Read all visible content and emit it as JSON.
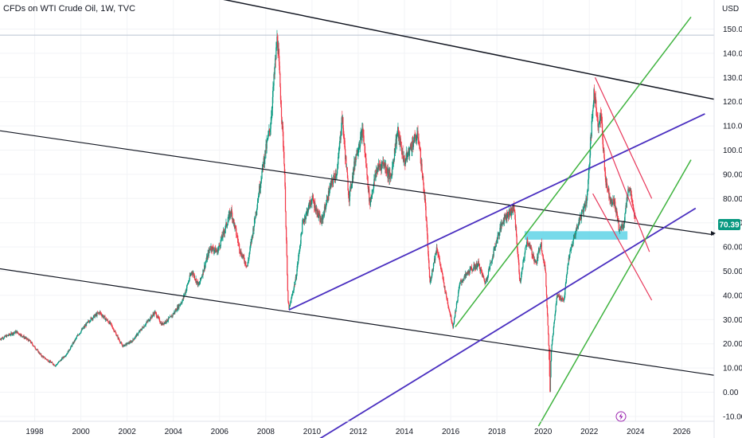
{
  "header": {
    "title": "CFDs on WTI Crude Oil, 1W, TVC",
    "currency": "USD"
  },
  "chart_data": {
    "type": "candlestick",
    "title": "CFDs on WTI Crude Oil, 1W, TVC",
    "ylabel": "USD",
    "ylim": [
      -12,
      162
    ],
    "xlim": [
      1996.5,
      2027.4
    ],
    "yticks": [
      "-10.00",
      "0.00",
      "10.00",
      "20.00",
      "30.00",
      "40.00",
      "50.00",
      "60.00",
      "70.00",
      "80.00",
      "90.00",
      "100.00",
      "110.00",
      "120.00",
      "130.00",
      "140.00",
      "150.00"
    ],
    "xticks": [
      "1998",
      "2000",
      "2002",
      "2004",
      "2006",
      "2008",
      "2010",
      "2012",
      "2014",
      "2016",
      "2018",
      "2020",
      "2022",
      "2024",
      "2026"
    ],
    "last_price": "70.39",
    "grid": true,
    "price_path": [
      [
        1996.5,
        22
      ],
      [
        1997.2,
        25
      ],
      [
        1997.8,
        21
      ],
      [
        1998.3,
        15
      ],
      [
        1998.9,
        11
      ],
      [
        1999.4,
        16
      ],
      [
        1999.9,
        24
      ],
      [
        2000.4,
        30
      ],
      [
        2000.8,
        33
      ],
      [
        2001.3,
        28
      ],
      [
        2001.8,
        19
      ],
      [
        2002.2,
        21
      ],
      [
        2002.7,
        27
      ],
      [
        2003.2,
        33
      ],
      [
        2003.5,
        28
      ],
      [
        2003.9,
        31
      ],
      [
        2004.4,
        38
      ],
      [
        2004.8,
        50
      ],
      [
        2005.1,
        44
      ],
      [
        2005.6,
        60
      ],
      [
        2005.9,
        58
      ],
      [
        2006.5,
        75
      ],
      [
        2006.9,
        58
      ],
      [
        2007.2,
        52
      ],
      [
        2007.5,
        70
      ],
      [
        2007.9,
        95
      ],
      [
        2008.2,
        110
      ],
      [
        2008.5,
        147
      ],
      [
        2008.8,
        95
      ],
      [
        2008.95,
        40
      ],
      [
        2009.0,
        34
      ],
      [
        2009.3,
        47
      ],
      [
        2009.6,
        70
      ],
      [
        2010.0,
        80
      ],
      [
        2010.4,
        70
      ],
      [
        2010.8,
        85
      ],
      [
        2011.1,
        92
      ],
      [
        2011.3,
        114
      ],
      [
        2011.6,
        80
      ],
      [
        2011.9,
        98
      ],
      [
        2012.2,
        108
      ],
      [
        2012.5,
        78
      ],
      [
        2012.8,
        92
      ],
      [
        2013.1,
        95
      ],
      [
        2013.4,
        88
      ],
      [
        2013.7,
        108
      ],
      [
        2014.0,
        95
      ],
      [
        2014.4,
        104
      ],
      [
        2014.6,
        106
      ],
      [
        2014.9,
        78
      ],
      [
        2015.1,
        45
      ],
      [
        2015.4,
        60
      ],
      [
        2015.8,
        40
      ],
      [
        2016.1,
        27
      ],
      [
        2016.4,
        45
      ],
      [
        2016.8,
        50
      ],
      [
        2017.2,
        53
      ],
      [
        2017.5,
        45
      ],
      [
        2018.0,
        63
      ],
      [
        2018.3,
        72
      ],
      [
        2018.75,
        76
      ],
      [
        2019.0,
        45
      ],
      [
        2019.3,
        63
      ],
      [
        2019.7,
        53
      ],
      [
        2019.9,
        62
      ],
      [
        2020.1,
        50
      ],
      [
        2020.25,
        18
      ],
      [
        2020.3,
        0
      ],
      [
        2020.35,
        17
      ],
      [
        2020.6,
        40
      ],
      [
        2020.9,
        38
      ],
      [
        2021.1,
        55
      ],
      [
        2021.4,
        66
      ],
      [
        2021.6,
        72
      ],
      [
        2021.9,
        80
      ],
      [
        2022.0,
        95
      ],
      [
        2022.2,
        124
      ],
      [
        2022.4,
        110
      ],
      [
        2022.5,
        115
      ],
      [
        2022.7,
        88
      ],
      [
        2022.9,
        80
      ],
      [
        2023.1,
        78
      ],
      [
        2023.3,
        67
      ],
      [
        2023.5,
        70
      ],
      [
        2023.6,
        78
      ],
      [
        2023.7,
        85
      ],
      [
        2023.8,
        82
      ],
      [
        2023.9,
        75
      ],
      [
        2024.0,
        70.39
      ]
    ],
    "trendlines": [
      {
        "color": "#131722",
        "width": 1.5,
        "points": [
          [
            1996.5,
            181
          ],
          [
            2027.4,
            121
          ]
        ]
      },
      {
        "color": "#131722",
        "width": 1.2,
        "points": [
          [
            1996.5,
            108
          ],
          [
            2027.4,
            65
          ]
        ]
      },
      {
        "color": "#131722",
        "width": 1.2,
        "points": [
          [
            1996.5,
            51
          ],
          [
            2027.4,
            7
          ]
        ]
      },
      {
        "color": "#4a2fc0",
        "width": 1.8,
        "points": [
          [
            2009.0,
            34
          ],
          [
            2027.0,
            115
          ]
        ]
      },
      {
        "color": "#4a2fc0",
        "width": 1.8,
        "points": [
          [
            2009.0,
            -27
          ],
          [
            2026.6,
            76
          ]
        ]
      },
      {
        "color": "#3fb33f",
        "width": 1.5,
        "points": [
          [
            2016.2,
            27
          ],
          [
            2026.4,
            155
          ]
        ]
      },
      {
        "color": "#3fb33f",
        "width": 1.5,
        "points": [
          [
            2019.8,
            -14
          ],
          [
            2026.4,
            96
          ]
        ]
      },
      {
        "color": "#e8375a",
        "width": 1.2,
        "points": [
          [
            2022.25,
            130
          ],
          [
            2024.7,
            80
          ]
        ]
      },
      {
        "color": "#e8375a",
        "width": 1.2,
        "points": [
          [
            2022.15,
            82
          ],
          [
            2024.7,
            38
          ]
        ]
      },
      {
        "color": "#e8375a",
        "width": 1.2,
        "points": [
          [
            2022.55,
            108
          ],
          [
            2024.6,
            58
          ]
        ]
      }
    ],
    "zones": [
      {
        "color": "#5fd3e6",
        "x0": 2019.2,
        "x1": 2023.65,
        "y0": 63,
        "y1": 66.5
      }
    ],
    "hlines": [
      {
        "color": "#b9c2d0",
        "y": 147.5
      }
    ]
  },
  "markers": {
    "flash_icon": "lightning-icon"
  }
}
